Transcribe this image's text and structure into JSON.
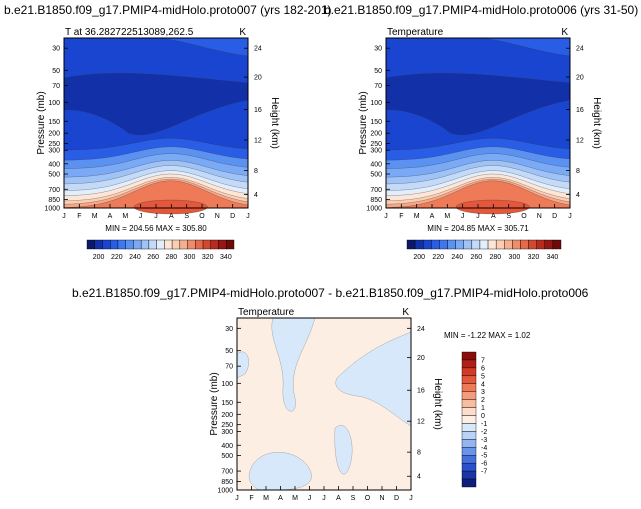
{
  "chart_data": [
    {
      "type": "heatmap",
      "title": "b.e21.B1850.f09_g17.PMIP4-midHolo.proto007 (yrs 182-201)",
      "subtitle_left": "T at 36.282722513089,262.5",
      "subtitle_right": "K",
      "xlabel": "",
      "ylabel": "Pressure (mb)",
      "ylabel_right": "Height (km)",
      "x_ticks": [
        "J",
        "F",
        "M",
        "A",
        "M",
        "J",
        "J",
        "A",
        "S",
        "O",
        "N",
        "D",
        "J"
      ],
      "y_ticks": [
        "30",
        "50",
        "70",
        "100",
        "150",
        "200",
        "250",
        "300",
        "400",
        "500",
        "700",
        "850",
        "1000"
      ],
      "y_right_ticks": [
        "24",
        "20",
        "16",
        "12",
        "8",
        "4"
      ],
      "bands_from_bottom": [
        300,
        290,
        280,
        270,
        260,
        250,
        240,
        230,
        220,
        210
      ],
      "statistics": "MIN = 204.56 MAX = 305.80",
      "colorbar": {
        "labels": [
          "200",
          "220",
          "240",
          "260",
          "280",
          "300",
          "320",
          "340"
        ],
        "colors": [
          "#0a1a6b",
          "#1230a8",
          "#1a45d0",
          "#2a5de6",
          "#3f78ee",
          "#5b92f2",
          "#7aa9f5",
          "#9fc2f7",
          "#c3daf9",
          "#e4eefb",
          "#fde6d6",
          "#fbcdb3",
          "#f6b090",
          "#ef8c6b",
          "#e46a4c",
          "#d4472f",
          "#b92a1e",
          "#951612",
          "#6e0a0a"
        ]
      }
    },
    {
      "type": "heatmap",
      "title": "b.e21.B1850.f09_g17.PMIP4-midHolo.proto006 (yrs 31-50)",
      "subtitle_left": "Temperature",
      "subtitle_right": "K",
      "xlabel": "",
      "ylabel": "Pressure (mb)",
      "ylabel_right": "Height (km)",
      "x_ticks": [
        "J",
        "F",
        "M",
        "A",
        "M",
        "J",
        "J",
        "A",
        "S",
        "O",
        "N",
        "D",
        "J"
      ],
      "y_ticks": [
        "30",
        "50",
        "70",
        "100",
        "150",
        "200",
        "250",
        "300",
        "400",
        "500",
        "700",
        "850",
        "1000"
      ],
      "y_right_ticks": [
        "24",
        "20",
        "16",
        "12",
        "8",
        "4"
      ],
      "bands_from_bottom": [
        300,
        290,
        280,
        270,
        260,
        250,
        240,
        230,
        220,
        210
      ],
      "statistics": "MIN = 204.85 MAX = 305.71",
      "colorbar": {
        "labels": [
          "200",
          "220",
          "240",
          "260",
          "280",
          "300",
          "320",
          "340"
        ],
        "colors": [
          "#0a1a6b",
          "#1230a8",
          "#1a45d0",
          "#2a5de6",
          "#3f78ee",
          "#5b92f2",
          "#7aa9f5",
          "#9fc2f7",
          "#c3daf9",
          "#e4eefb",
          "#fde6d6",
          "#fbcdb3",
          "#f6b090",
          "#ef8c6b",
          "#e46a4c",
          "#d4472f",
          "#b92a1e",
          "#951612",
          "#6e0a0a"
        ]
      }
    },
    {
      "type": "heatmap",
      "title": "b.e21.B1850.f09_g17.PMIP4-midHolo.proto007 - b.e21.B1850.f09_g17.PMIP4-midHolo.proto006",
      "subtitle_left": "Temperature",
      "subtitle_right": "K",
      "xlabel": "",
      "ylabel": "Pressure (mb)",
      "ylabel_right": "Height (km)",
      "x_ticks": [
        "J",
        "F",
        "M",
        "A",
        "M",
        "J",
        "J",
        "A",
        "S",
        "O",
        "N",
        "D",
        "J"
      ],
      "y_ticks": [
        "30",
        "50",
        "70",
        "100",
        "150",
        "200",
        "250",
        "300",
        "400",
        "500",
        "700",
        "850",
        "1000"
      ],
      "y_right_ticks": [
        "24",
        "20",
        "16",
        "12",
        "8",
        "4"
      ],
      "background_value": "0 to 1",
      "statistics": "MIN = -1.22 MAX = 1.02",
      "colorbar": {
        "labels": [
          "7",
          "6",
          "5",
          "4",
          "3",
          "2",
          "1",
          "0",
          "-1",
          "-2",
          "-3",
          "-4",
          "-5",
          "-6",
          "-7"
        ],
        "colors": [
          "#8b0d0a",
          "#b31f16",
          "#d13a24",
          "#e4573a",
          "#ee7a57",
          "#f49c7b",
          "#f8bda1",
          "#fcdcca",
          "#fdeee4",
          "#d7e8fb",
          "#b9d2f7",
          "#93b5f2",
          "#6a93ea",
          "#4470dd",
          "#2a4fc9",
          "#1a35a6",
          "#0d1f7a"
        ]
      }
    }
  ]
}
